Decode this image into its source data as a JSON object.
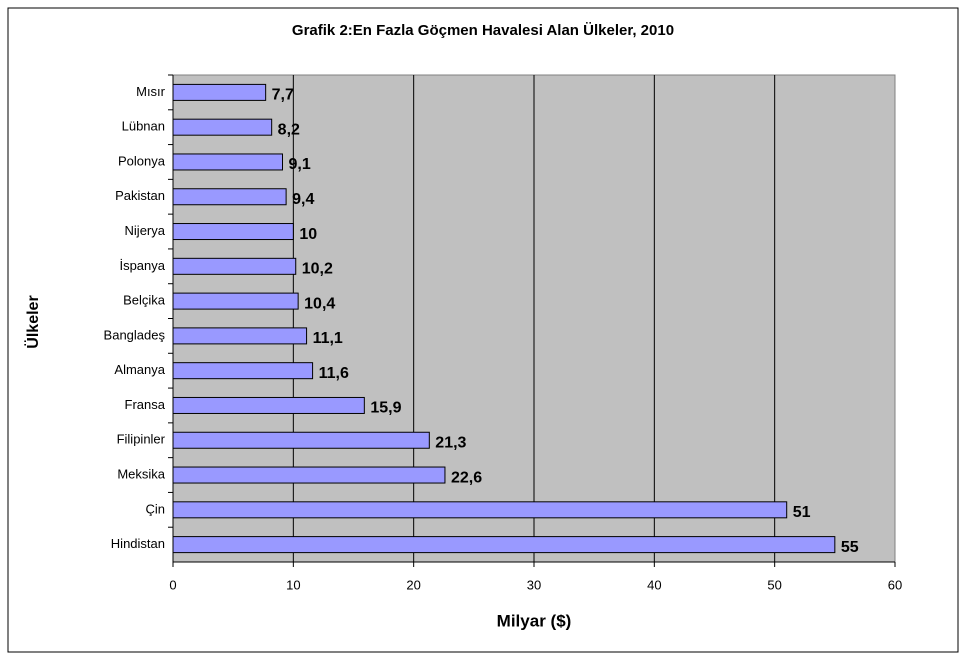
{
  "chart_data": {
    "type": "barh",
    "title": "Grafik 2:En Fazla Göçmen Havalesi Alan Ülkeler, 2010",
    "xlabel": "Milyar ($)",
    "ylabel": "Ülkeler",
    "categories": [
      "Mısır",
      "Lübnan",
      "Polonya",
      "Pakistan",
      "Nijerya",
      "İspanya",
      "Belçika",
      "Bangladeş",
      "Almanya",
      "Fransa",
      "Filipinler",
      "Meksika",
      "Çin",
      "Hindistan"
    ],
    "values": [
      7.7,
      8.2,
      9.1,
      9.4,
      10,
      10.2,
      10.4,
      11.1,
      11.6,
      15.9,
      21.3,
      22.6,
      51,
      55
    ],
    "value_labels": [
      "7,7",
      "8,2",
      "9,1",
      "9,4",
      "10",
      "10,2",
      "10,4",
      "11,1",
      "11,6",
      "15,9",
      "21,3",
      "22,6",
      "51",
      "55"
    ],
    "color": "#9999ff",
    "xlim": [
      0,
      60
    ],
    "xticks": [
      0,
      10,
      20,
      30,
      40,
      50,
      60
    ],
    "grid": true
  }
}
